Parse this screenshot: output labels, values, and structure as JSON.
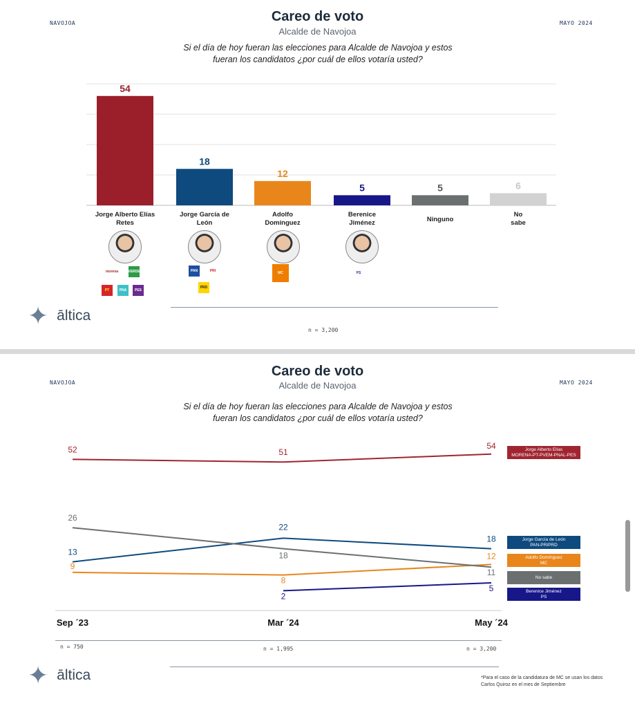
{
  "slides": [
    {
      "location": "NAVOJOA",
      "date": "MAYO 2024",
      "title": "Careo de voto",
      "subtitle": "Alcalde de Navojoa",
      "question_line1": "Si el día de hoy fueran las elecciones para Alcalde de Navojoa y estos",
      "question_line2": "fueran los candidatos ¿por cuál de ellos votaría usted?",
      "sample": "n = 3,200",
      "brand": "āltica"
    },
    {
      "location": "NAVOJOA",
      "date": "MAYO 2024",
      "title": "Careo de voto",
      "subtitle": "Alcalde de Navojoa",
      "question_line1": "Si el día de hoy fueran las elecciones para Alcalde de Navojoa y estos",
      "question_line2": "fueran los candidatos ¿por cuál de ellos votaría usted?",
      "samples": [
        "n = 750",
        "n = 1,995",
        "n = 3,200"
      ],
      "brand": "āltica",
      "footnote_line1": "*Para el caso de la candidatura de MC se usan los datos",
      "footnote_line2": "Carlos Quiroz en el mes de Septiembre"
    }
  ],
  "parties": {
    "c0": [
      "morena",
      "VERDE",
      "PT",
      "PNA",
      "PES"
    ],
    "c1": [
      "PAN",
      "PRI",
      "PRD"
    ],
    "c2": [
      "MC"
    ],
    "c3": [
      "PS"
    ]
  },
  "chart_data": [
    {
      "type": "bar",
      "title": "Careo de voto",
      "categories": [
        "Jorge Alberto Elías Retes",
        "Jorge García de León",
        "Adolfo Domínguez",
        "Berenice Jiménez",
        "Ninguno",
        "No sabe"
      ],
      "values": [
        54,
        18,
        12,
        5,
        5,
        6
      ],
      "colors": [
        "#9b1f2b",
        "#0e4a7e",
        "#e8861c",
        "#17178a",
        "#6b6f70",
        "#d2d2d2"
      ],
      "ylim": [
        0,
        60
      ],
      "grid": true
    },
    {
      "type": "line",
      "title": "Careo de voto",
      "x": [
        "Sep ´23",
        "Mar ´24",
        "May ´24"
      ],
      "series": [
        {
          "name": "Jorge Alberto Elías",
          "sublabel": "MORENA-PT-PVEM-PNAL-PES",
          "values": [
            52,
            51,
            54
          ],
          "color": "#a02530"
        },
        {
          "name": "Jorge García de León",
          "sublabel": "PAN-PRIPRD",
          "values": [
            13,
            22,
            18
          ],
          "color": "#0e4a7e"
        },
        {
          "name": "Adolfo Domínguez",
          "sublabel": "MC",
          "values": [
            9,
            8,
            12
          ],
          "color": "#e8861c"
        },
        {
          "name": "No sabe",
          "sublabel": "",
          "values": [
            26,
            18,
            11
          ],
          "color": "#6b6f70"
        },
        {
          "name": "Berenice Jiménez",
          "sublabel": "PS",
          "values": [
            null,
            2,
            5
          ],
          "color": "#17178a"
        }
      ]
    }
  ]
}
